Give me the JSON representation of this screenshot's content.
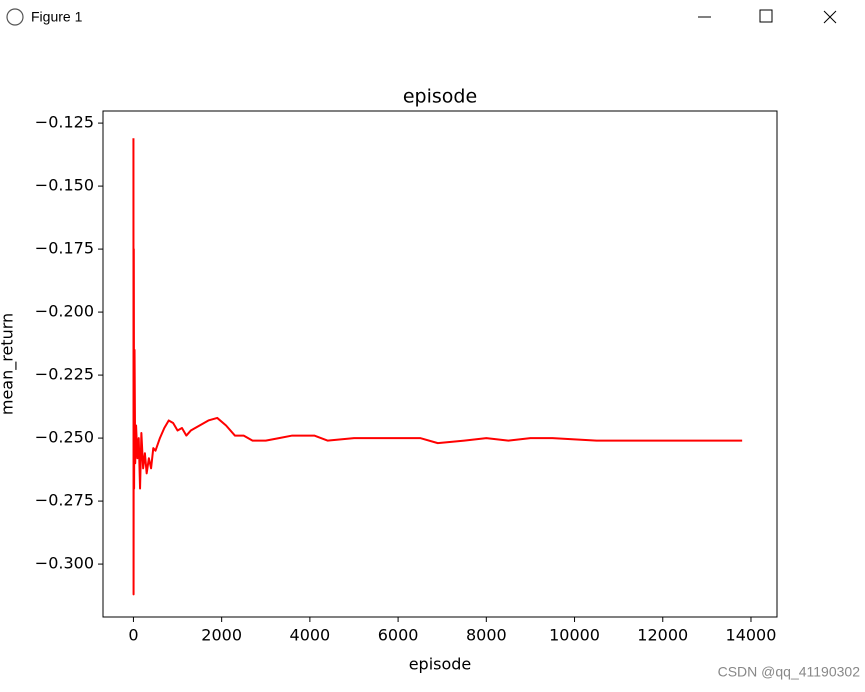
{
  "window": {
    "title": "Figure 1"
  },
  "watermark": "CSDN @qq_41190302",
  "chart_data": {
    "type": "line",
    "title": "episode",
    "x_label": "episode",
    "y_label": "mean_return",
    "xlim": [
      -690,
      14590
    ],
    "ylim": [
      -0.321,
      -0.1202
    ],
    "xticks": [
      0,
      2000,
      4000,
      6000,
      8000,
      10000,
      12000,
      14000
    ],
    "yticks": [
      {
        "value": -0.125,
        "label": "−0.125"
      },
      {
        "value": -0.15,
        "label": "−0.150"
      },
      {
        "value": -0.175,
        "label": "−0.175"
      },
      {
        "value": -0.2,
        "label": "−0.200"
      },
      {
        "value": -0.225,
        "label": "−0.225"
      },
      {
        "value": -0.25,
        "label": "−0.250"
      },
      {
        "value": -0.275,
        "label": "−0.275"
      },
      {
        "value": -0.3,
        "label": "−0.300"
      }
    ],
    "grid": false,
    "series": [
      {
        "color": "#ff0000",
        "x": [
          0,
          3,
          8,
          15,
          25,
          40,
          60,
          90,
          120,
          150,
          180,
          220,
          260,
          300,
          350,
          400,
          450,
          500,
          600,
          700,
          800,
          900,
          1000,
          1100,
          1200,
          1300,
          1500,
          1700,
          1900,
          2100,
          2300,
          2500,
          2700,
          3000,
          3300,
          3600,
          3900,
          4100,
          4400,
          5000,
          5500,
          6000,
          6500,
          6900,
          7500,
          8000,
          8500,
          9000,
          9500,
          10000,
          10500,
          11000,
          12000,
          13000,
          13800
        ],
        "values": [
          -0.131,
          -0.312,
          -0.175,
          -0.27,
          -0.215,
          -0.26,
          -0.245,
          -0.258,
          -0.25,
          -0.27,
          -0.248,
          -0.262,
          -0.256,
          -0.264,
          -0.258,
          -0.262,
          -0.254,
          -0.255,
          -0.25,
          -0.246,
          -0.243,
          -0.244,
          -0.247,
          -0.246,
          -0.249,
          -0.247,
          -0.245,
          -0.243,
          -0.242,
          -0.245,
          -0.249,
          -0.249,
          -0.251,
          -0.251,
          -0.25,
          -0.249,
          -0.249,
          -0.249,
          -0.251,
          -0.25,
          -0.25,
          -0.25,
          -0.25,
          -0.252,
          -0.251,
          -0.25,
          -0.251,
          -0.25,
          -0.25,
          -0.2505,
          -0.251,
          -0.251,
          -0.251,
          -0.251,
          -0.251
        ]
      }
    ]
  }
}
